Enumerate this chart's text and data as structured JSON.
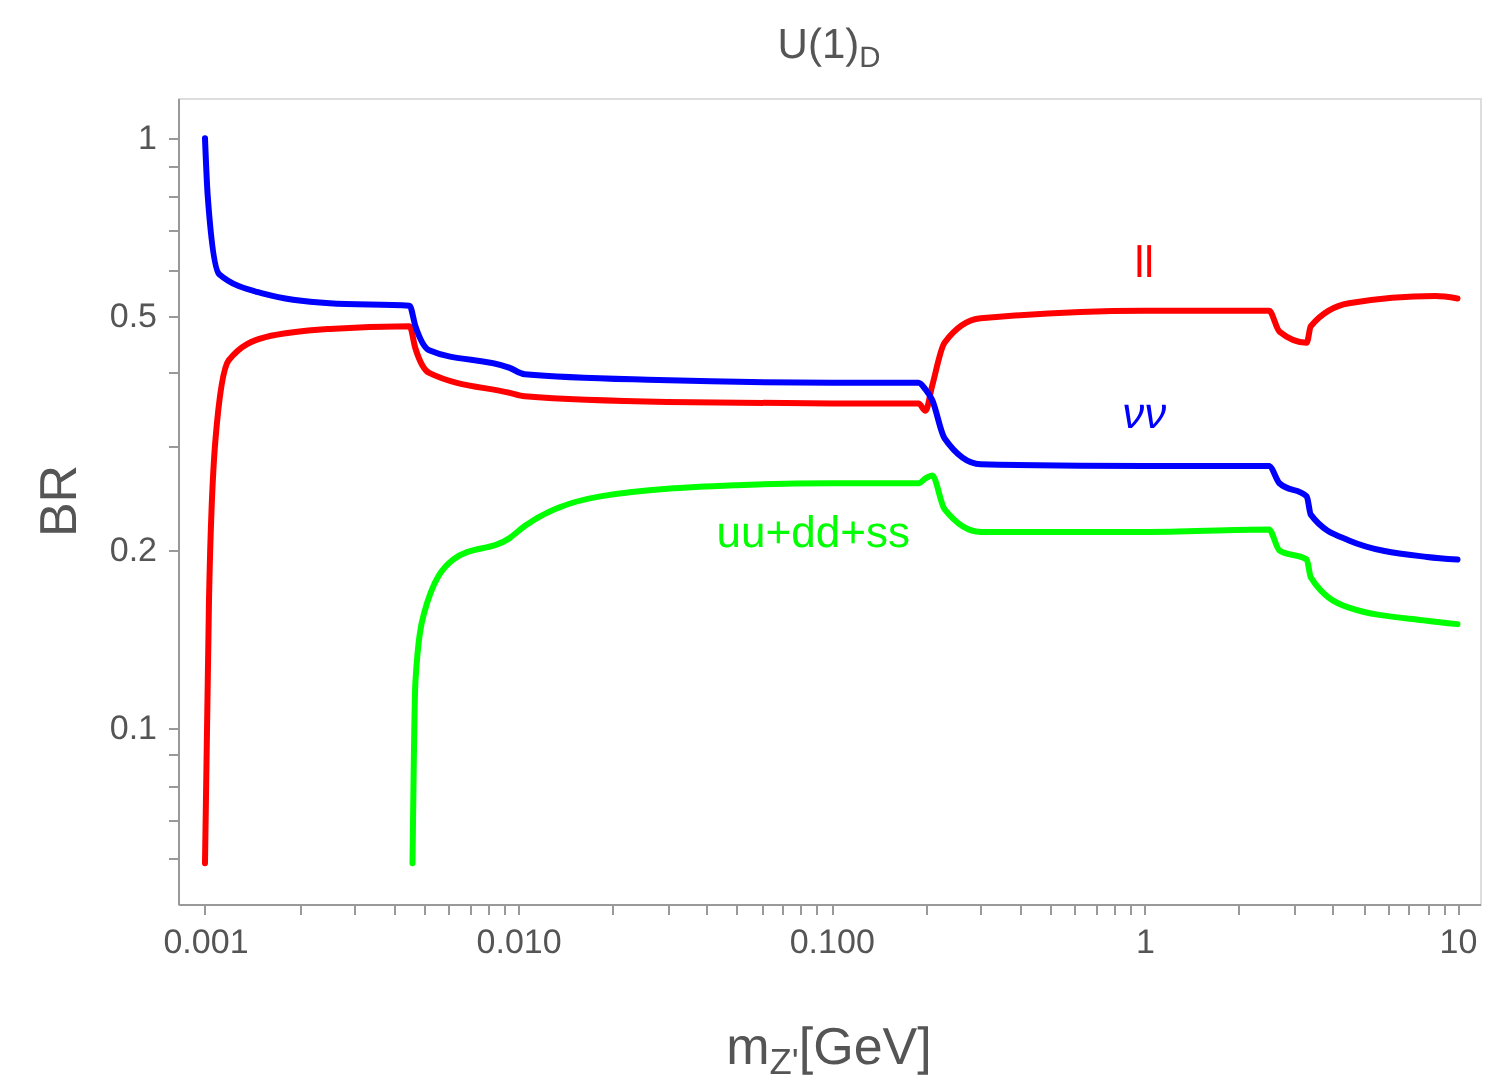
{
  "chart_data": {
    "type": "line",
    "title": "U(1)$_{D}$",
    "xlabel": "m$_{Z'}$[GeV]",
    "ylabel": "BR",
    "log": "xy",
    "grid": false,
    "marker": "none",
    "line_style": "solid",
    "xlim": [
      0.00082,
      11.8
    ],
    "ylim": [
      0.0503,
      1.17
    ],
    "xticks": [
      0.001,
      {
        "value": 0.002,
        "label": null
      },
      {
        "value": 0.003,
        "label": null
      },
      {
        "value": 0.004,
        "label": null
      },
      {
        "value": 0.005,
        "label": null
      },
      {
        "value": 0.006,
        "label": null
      },
      {
        "value": 0.007,
        "label": null
      },
      {
        "value": 0.008,
        "label": null
      },
      {
        "value": 0.009,
        "label": null
      },
      {
        "value": 0.01,
        "label": "0.010"
      },
      {
        "value": 0.02,
        "label": null
      },
      {
        "value": 0.03,
        "label": null
      },
      {
        "value": 0.04,
        "label": null
      },
      {
        "value": 0.05,
        "label": null
      },
      {
        "value": 0.06,
        "label": null
      },
      {
        "value": 0.07,
        "label": null
      },
      {
        "value": 0.08,
        "label": null
      },
      {
        "value": 0.09,
        "label": null
      },
      {
        "value": 0.1,
        "label": "0.100"
      },
      {
        "value": 0.2,
        "label": null
      },
      {
        "value": 0.3,
        "label": null
      },
      {
        "value": 0.4,
        "label": null
      },
      {
        "value": 0.5,
        "label": null
      },
      {
        "value": 0.6,
        "label": null
      },
      {
        "value": 0.7,
        "label": null
      },
      {
        "value": 0.8,
        "label": null
      },
      {
        "value": 0.9,
        "label": null
      },
      1,
      {
        "value": 2,
        "label": null
      },
      {
        "value": 3,
        "label": null
      },
      {
        "value": 4,
        "label": null
      },
      {
        "value": 5,
        "label": null
      },
      {
        "value": 6,
        "label": null
      },
      {
        "value": 7,
        "label": null
      },
      {
        "value": 8,
        "label": null
      },
      {
        "value": 9,
        "label": null
      },
      10
    ],
    "yticks": [
      {
        "value": 0.06,
        "label": null
      },
      {
        "value": 0.07,
        "label": null
      },
      {
        "value": 0.08,
        "label": null
      },
      {
        "value": 0.09,
        "label": null
      },
      0.1,
      0.2,
      {
        "value": 0.3,
        "label": null
      },
      {
        "value": 0.4,
        "label": null
      },
      0.5,
      {
        "value": 0.6,
        "label": null
      },
      {
        "value": 0.7,
        "label": null
      },
      {
        "value": 0.8,
        "label": null
      },
      {
        "value": 0.9,
        "label": null
      },
      1
    ],
    "series": [
      {
        "name": "ll",
        "color": "#ff0000",
        "x": [
          0.001,
          0.00103,
          0.00108,
          0.00119,
          0.00156,
          0.0025,
          0.0045,
          0.0047,
          0.0052,
          0.0094,
          0.0105,
          0.03,
          0.1,
          0.19,
          0.2,
          0.21,
          0.23,
          0.3,
          1,
          2.5,
          2.7,
          3.3,
          3.4,
          4.5,
          8.5,
          10
        ],
        "values": [
          0.059,
          0.165,
          0.308,
          0.42,
          0.46,
          0.475,
          0.48,
          0.44,
          0.4,
          0.37,
          0.365,
          0.357,
          0.355,
          0.355,
          0.345,
          0.38,
          0.45,
          0.495,
          0.51,
          0.51,
          0.47,
          0.45,
          0.48,
          0.525,
          0.54,
          0.535
        ]
      },
      {
        "name": "νν",
        "color": "#0000ff",
        "x": [
          0.001,
          0.00102,
          0.00111,
          0.00156,
          0.0025,
          0.0045,
          0.0047,
          0.0052,
          0.0094,
          0.0105,
          0.028,
          0.1,
          0.19,
          0.2,
          0.21,
          0.23,
          0.3,
          1,
          2.5,
          2.7,
          3.3,
          3.4,
          4.5,
          8,
          10
        ],
        "values": [
          1.0,
          0.8,
          0.588,
          0.544,
          0.525,
          0.52,
          0.48,
          0.437,
          0.408,
          0.398,
          0.389,
          0.385,
          0.385,
          0.375,
          0.36,
          0.31,
          0.28,
          0.278,
          0.278,
          0.26,
          0.247,
          0.23,
          0.208,
          0.195,
          0.193
        ]
      },
      {
        "name": "uu+dd+ss",
        "color": "#00ff00",
        "x": [
          0.0046,
          0.0047,
          0.005,
          0.0062,
          0.0094,
          0.0105,
          0.0183,
          0.05,
          0.1,
          0.19,
          0.2,
          0.21,
          0.23,
          0.3,
          1,
          2.5,
          2.7,
          3.3,
          3.4,
          4.5,
          8,
          10
        ],
        "values": [
          0.059,
          0.12,
          0.156,
          0.193,
          0.21,
          0.22,
          0.247,
          0.258,
          0.26,
          0.26,
          0.265,
          0.268,
          0.235,
          0.215,
          0.215,
          0.217,
          0.2,
          0.193,
          0.18,
          0.16,
          0.152,
          0.15
        ]
      }
    ]
  }
}
